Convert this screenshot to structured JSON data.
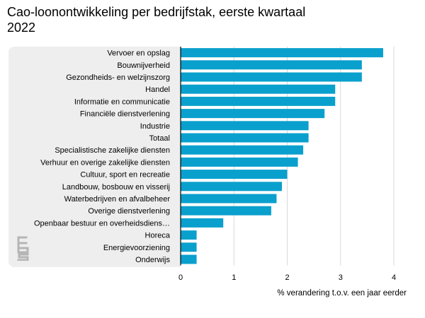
{
  "title": "Cao-loonontwikkeling per bedrijfstak, eerste kwartaal 2022",
  "colors": {
    "bar": "#0aa0cd",
    "grid": "#d8d8d8",
    "axis": "#000000",
    "panel": "#eeeeee",
    "logo": "#b5b5b5"
  },
  "logo_icon": "cbs-logo-icon",
  "chart_data": {
    "type": "bar",
    "orientation": "horizontal",
    "title": "Cao-loonontwikkeling per bedrijfstak, eerste kwartaal 2022",
    "xlabel": "% verandering t.o.v. een jaar eerder",
    "ylabel": "",
    "xlim": [
      0,
      4
    ],
    "xticks": [
      0,
      1,
      2,
      3,
      4
    ],
    "grid": true,
    "categories": [
      "Vervoer en opslag",
      "Bouwnijverheid",
      "Gezondheids- en welzijnszorg",
      "Handel",
      "Informatie en communicatie",
      "Financiële dienstverlening",
      "Industrie",
      "Totaal",
      "Specialistische zakelijke diensten",
      "Verhuur en overige zakelijke diensten",
      "Cultuur, sport en recreatie",
      "Landbouw, bosbouw en visserij",
      "Waterbedrijven en afvalbeheer",
      "Overige dienstverlening",
      "Openbaar bestuur en overheidsdiens…",
      "Horeca",
      "Energievoorziening",
      "Onderwijs"
    ],
    "values": [
      3.8,
      3.4,
      3.4,
      2.9,
      2.9,
      2.7,
      2.4,
      2.4,
      2.3,
      2.2,
      2.0,
      1.9,
      1.8,
      1.7,
      0.8,
      0.3,
      0.3,
      0.3
    ]
  }
}
